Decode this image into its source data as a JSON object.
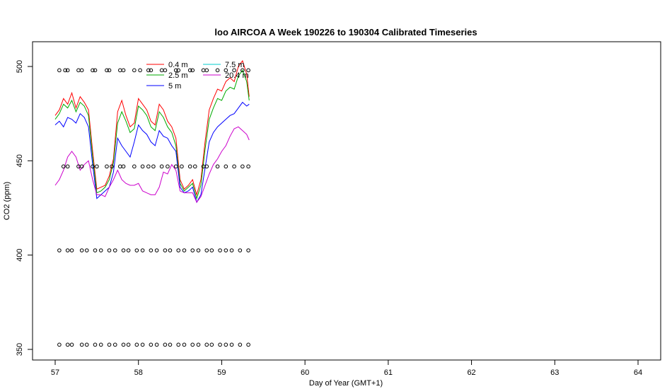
{
  "chart_data": {
    "type": "line",
    "title": "loo AIRCOA A  Week 190226 to 190304  Calibrated Timeseries",
    "xlabel": "Day of Year (GMT+1)",
    "ylabel": "CO2 (ppm)",
    "xlim": [
      57,
      64
    ],
    "ylim": [
      350,
      512
    ],
    "xticks": [
      57,
      58,
      59,
      60,
      61,
      62,
      63,
      64
    ],
    "yticks": [
      350,
      400,
      450,
      500
    ],
    "grid": false,
    "legend_position": "top-left",
    "series": [
      {
        "name": "0.4 m",
        "color": "#ff0000",
        "x": [
          57.0,
          57.05,
          57.1,
          57.15,
          57.2,
          57.25,
          57.3,
          57.35,
          57.4,
          57.45,
          57.5,
          57.55,
          57.6,
          57.65,
          57.7,
          57.75,
          57.8,
          57.85,
          57.9,
          57.95,
          58.0,
          58.05,
          58.1,
          58.15,
          58.2,
          58.25,
          58.3,
          58.35,
          58.4,
          58.45,
          58.5,
          58.55,
          58.6,
          58.65,
          58.7,
          58.75,
          58.8,
          58.85,
          58.9,
          58.95,
          59.0,
          59.05,
          59.1,
          59.15,
          59.2,
          59.25,
          59.3,
          59.33
        ],
        "y": [
          474,
          477,
          483,
          480,
          486,
          478,
          484,
          481,
          477,
          455,
          435,
          436,
          437,
          442,
          451,
          476,
          482,
          474,
          468,
          470,
          483,
          480,
          477,
          471,
          469,
          480,
          477,
          471,
          468,
          462,
          440,
          435,
          437,
          440,
          432,
          440,
          460,
          477,
          483,
          488,
          487,
          492,
          494,
          492,
          500,
          503,
          496,
          484
        ]
      },
      {
        "name": "2.5 m",
        "color": "#00aa00",
        "x": [
          57.0,
          57.05,
          57.1,
          57.15,
          57.2,
          57.25,
          57.3,
          57.35,
          57.4,
          57.45,
          57.5,
          57.55,
          57.6,
          57.65,
          57.7,
          57.75,
          57.8,
          57.85,
          57.9,
          57.95,
          58.0,
          58.05,
          58.1,
          58.15,
          58.2,
          58.25,
          58.3,
          58.35,
          58.4,
          58.45,
          58.5,
          58.55,
          58.6,
          58.65,
          58.7,
          58.75,
          58.8,
          58.85,
          58.9,
          58.95,
          59.0,
          59.05,
          59.1,
          59.15,
          59.2,
          59.25,
          59.3,
          59.33
        ],
        "y": [
          472,
          475,
          480,
          478,
          482,
          476,
          481,
          479,
          474,
          452,
          433,
          434,
          436,
          440,
          449,
          470,
          476,
          471,
          465,
          467,
          479,
          477,
          474,
          468,
          466,
          476,
          473,
          468,
          465,
          458,
          438,
          434,
          436,
          438,
          430,
          437,
          456,
          472,
          478,
          483,
          482,
          487,
          489,
          488,
          495,
          498,
          492,
          482
        ]
      },
      {
        "name": "5 m",
        "color": "#0000ff",
        "x": [
          57.0,
          57.05,
          57.1,
          57.15,
          57.2,
          57.25,
          57.3,
          57.35,
          57.4,
          57.45,
          57.5,
          57.55,
          57.6,
          57.65,
          57.7,
          57.75,
          57.8,
          57.85,
          57.9,
          57.95,
          58.0,
          58.05,
          58.1,
          58.15,
          58.2,
          58.25,
          58.3,
          58.35,
          58.4,
          58.45,
          58.5,
          58.55,
          58.6,
          58.65,
          58.7,
          58.75,
          58.8,
          58.85,
          58.9,
          58.95,
          59.0,
          59.05,
          59.1,
          59.15,
          59.2,
          59.25,
          59.3,
          59.33
        ],
        "y": [
          469,
          471,
          468,
          473,
          472,
          470,
          475,
          473,
          468,
          448,
          430,
          432,
          434,
          436,
          444,
          462,
          458,
          455,
          452,
          460,
          469,
          466,
          464,
          460,
          458,
          466,
          463,
          462,
          458,
          455,
          436,
          433,
          434,
          436,
          428,
          432,
          446,
          460,
          465,
          468,
          470,
          472,
          474,
          475,
          478,
          481,
          479,
          480
        ]
      },
      {
        "name": "7.5 m",
        "color": "#00cccc",
        "x": [],
        "y": []
      },
      {
        "name": "20.4 m",
        "color": "#cc00cc",
        "x": [
          57.0,
          57.05,
          57.1,
          57.15,
          57.2,
          57.25,
          57.3,
          57.35,
          57.4,
          57.45,
          57.5,
          57.55,
          57.6,
          57.65,
          57.7,
          57.75,
          57.8,
          57.85,
          57.9,
          57.95,
          58.0,
          58.05,
          58.1,
          58.15,
          58.2,
          58.25,
          58.3,
          58.35,
          58.4,
          58.45,
          58.5,
          58.55,
          58.6,
          58.65,
          58.7,
          58.75,
          58.8,
          58.85,
          58.9,
          58.95,
          59.0,
          59.05,
          59.1,
          59.15,
          59.2,
          59.25,
          59.3,
          59.33
        ],
        "y": [
          437,
          440,
          445,
          452,
          455,
          452,
          445,
          448,
          450,
          440,
          432,
          432,
          431,
          436,
          440,
          445,
          440,
          438,
          437,
          437,
          438,
          434,
          433,
          432,
          432,
          436,
          444,
          443,
          448,
          445,
          434,
          433,
          433,
          433,
          428,
          431,
          437,
          443,
          448,
          451,
          455,
          458,
          463,
          467,
          468,
          466,
          464,
          461
        ]
      },
      {
        "name": "",
        "color": "#000000",
        "type": "scatter",
        "x": [
          57.05,
          57.12,
          57.15,
          57.28,
          57.32,
          57.45,
          57.48,
          57.62,
          57.65,
          57.78,
          57.82,
          57.95,
          58.02,
          58.12,
          58.15,
          58.28,
          58.32,
          58.45,
          58.48,
          58.62,
          58.65,
          58.78,
          58.82,
          58.95,
          59.05,
          59.15,
          59.25,
          59.32
        ],
        "y": [
          498,
          498,
          498,
          498,
          498,
          498,
          498,
          498,
          498,
          498,
          498,
          498,
          498,
          498,
          498,
          498,
          498,
          498,
          498,
          498,
          498,
          498,
          498,
          498,
          498,
          498,
          498,
          498
        ]
      },
      {
        "name": "",
        "color": "#000000",
        "type": "scatter",
        "x": [
          57.1,
          57.15,
          57.28,
          57.32,
          57.45,
          57.5,
          57.62,
          57.68,
          57.78,
          57.82,
          57.95,
          58.05,
          58.12,
          58.18,
          58.28,
          58.35,
          58.45,
          58.52,
          58.62,
          58.68,
          58.78,
          58.82,
          58.95,
          59.05,
          59.15,
          59.25,
          59.32
        ],
        "y": [
          447,
          447,
          447,
          447,
          447,
          447,
          447,
          447,
          447,
          447,
          447,
          447,
          447,
          447,
          447,
          447,
          447,
          447,
          447,
          447,
          447,
          447,
          447,
          447,
          447,
          447,
          447
        ]
      },
      {
        "name": "",
        "color": "#000000",
        "type": "scatter",
        "x": [
          57.05,
          57.15,
          57.2,
          57.32,
          57.38,
          57.48,
          57.55,
          57.65,
          57.72,
          57.82,
          57.88,
          57.98,
          58.05,
          58.15,
          58.22,
          58.32,
          58.38,
          58.48,
          58.55,
          58.65,
          58.72,
          58.82,
          58.88,
          58.98,
          59.05,
          59.12,
          59.22,
          59.32
        ],
        "y": [
          402.5,
          402.5,
          402.5,
          402.5,
          402.5,
          402.5,
          402.5,
          402.5,
          402.5,
          402.5,
          402.5,
          402.5,
          402.5,
          402.5,
          402.5,
          402.5,
          402.5,
          402.5,
          402.5,
          402.5,
          402.5,
          402.5,
          402.5,
          402.5,
          402.5,
          402.5,
          402.5,
          402.5
        ]
      },
      {
        "name": "",
        "color": "#000000",
        "type": "scatter",
        "x": [
          57.05,
          57.15,
          57.2,
          57.32,
          57.38,
          57.48,
          57.55,
          57.65,
          57.72,
          57.82,
          57.88,
          57.98,
          58.05,
          58.15,
          58.22,
          58.32,
          58.38,
          58.48,
          58.55,
          58.65,
          58.72,
          58.82,
          58.88,
          58.98,
          59.05,
          59.12,
          59.22,
          59.32
        ],
        "y": [
          352.5,
          352.5,
          352.5,
          352.5,
          352.5,
          352.5,
          352.5,
          352.5,
          352.5,
          352.5,
          352.5,
          352.5,
          352.5,
          352.5,
          352.5,
          352.5,
          352.5,
          352.5,
          352.5,
          352.5,
          352.5,
          352.5,
          352.5,
          352.5,
          352.5,
          352.5,
          352.5,
          352.5
        ]
      }
    ]
  }
}
